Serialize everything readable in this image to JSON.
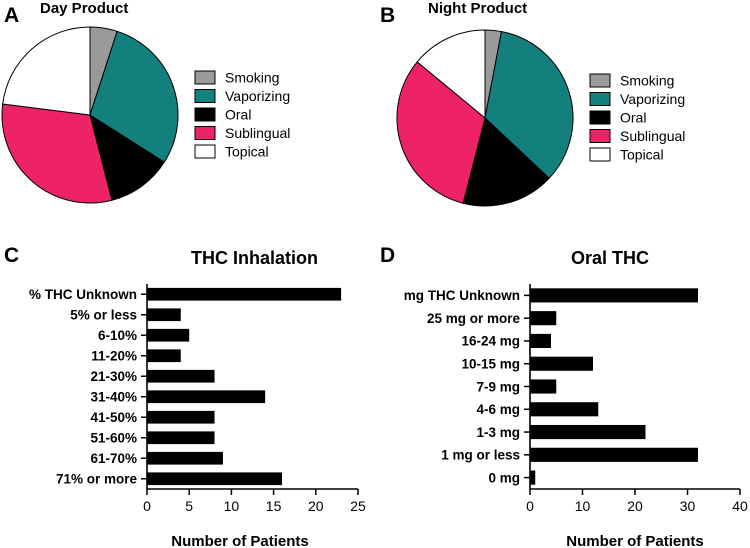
{
  "chart_data": [
    {
      "panel": "A",
      "type": "pie",
      "title": "Day Product",
      "labels": [
        "Smoking",
        "Vaporizing",
        "Oral",
        "Sublingual",
        "Topical"
      ],
      "values": [
        5,
        29,
        12,
        31,
        23
      ],
      "colors": [
        "#9a9a9a",
        "#13807e",
        "#000000",
        "#ee2366",
        "#ffffff"
      ],
      "legend": "right"
    },
    {
      "panel": "B",
      "type": "pie",
      "title": "Night Product",
      "labels": [
        "Smoking",
        "Vaporizing",
        "Oral",
        "Sublingual",
        "Topical"
      ],
      "values": [
        3,
        34,
        17,
        32,
        14
      ],
      "colors": [
        "#9a9a9a",
        "#13807e",
        "#000000",
        "#ee2366",
        "#ffffff"
      ],
      "legend": "right"
    },
    {
      "panel": "C",
      "type": "bar",
      "orientation": "horizontal",
      "title": "THC Inhalation",
      "categories": [
        "% THC Unknown",
        "5% or less",
        "6-10%",
        "11-20%",
        "21-30%",
        "31-40%",
        "41-50%",
        "51-60%",
        "61-70%",
        "71% or more"
      ],
      "values": [
        23,
        4,
        5,
        4,
        8,
        14,
        8,
        8,
        9,
        16
      ],
      "xlabel": "Number of Patients",
      "xlim": [
        0,
        25
      ],
      "xticks": [
        "0",
        "5",
        "10",
        "15",
        "20",
        "25"
      ],
      "bar_color": "#000000"
    },
    {
      "panel": "D",
      "type": "bar",
      "orientation": "horizontal",
      "title": "Oral THC",
      "categories": [
        "mg THC Unknown",
        "25 mg or more",
        "16-24 mg",
        "10-15 mg",
        "7-9 mg",
        "4-6 mg",
        "1-3 mg",
        "1 mg or less",
        "0 mg"
      ],
      "values": [
        32,
        5,
        4,
        12,
        5,
        13,
        22,
        32,
        1
      ],
      "xlabel": "Number of Patients",
      "xlim": [
        0,
        40
      ],
      "xticks": [
        "0",
        "10",
        "20",
        "30",
        "40"
      ],
      "bar_color": "#000000"
    }
  ]
}
